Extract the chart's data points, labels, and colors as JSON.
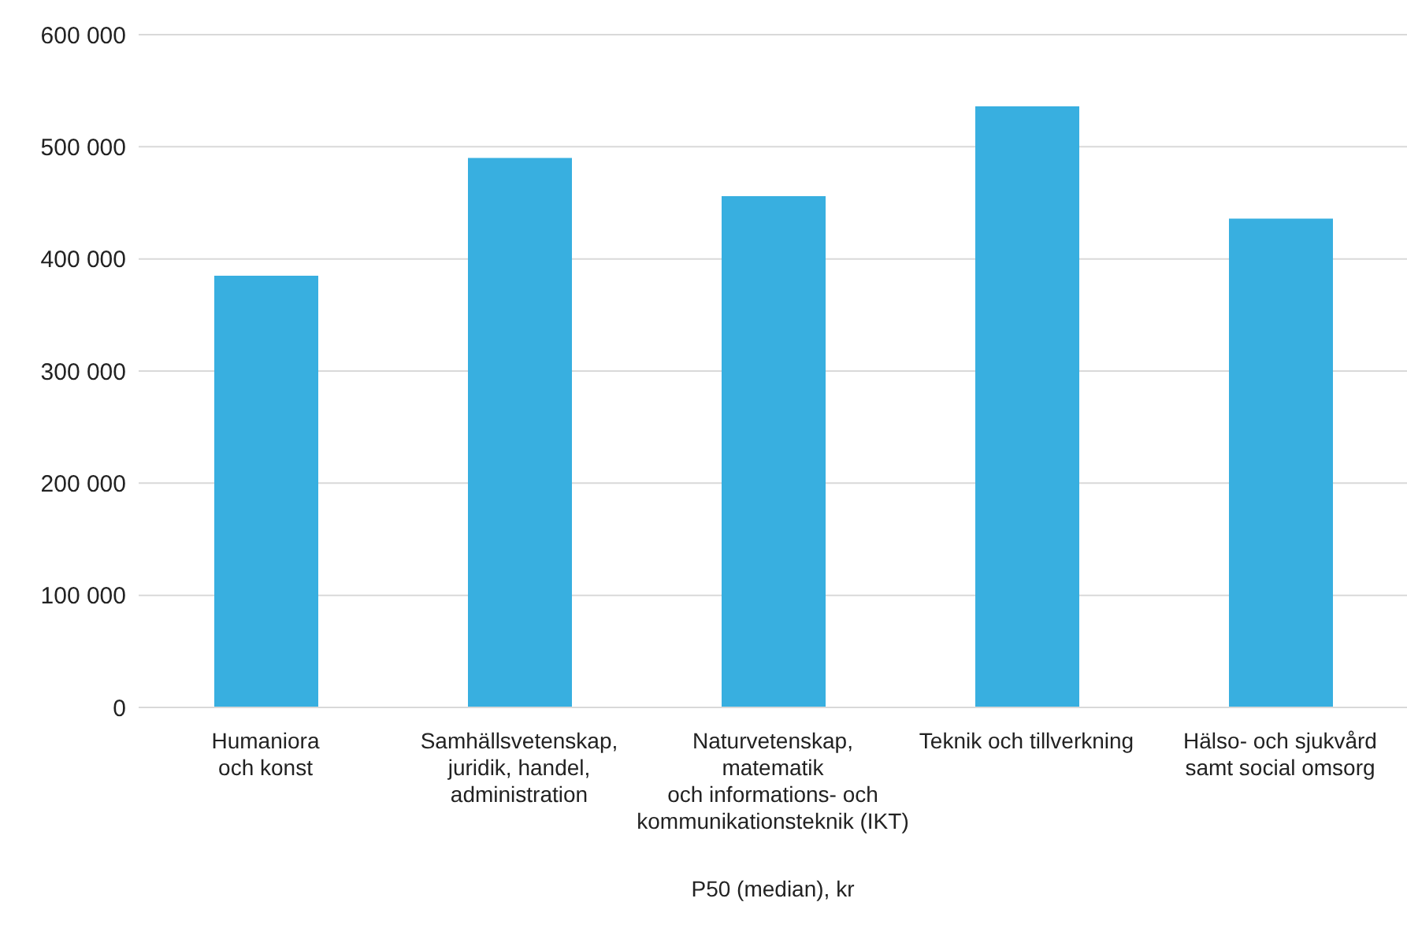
{
  "chart_data": {
    "type": "bar",
    "xlabel": "P50 (median), kr",
    "categories": [
      "Humaniora\noch konst",
      "Samhällsvetenskap,\njuridik, handel,\nadministration",
      "Naturvetenskap,\nmatematik\noch informations- och\nkommunikationsteknik (IKT)",
      "Teknik och tillverkning",
      "Hälso- och sjukvård\nsamt social omsorg"
    ],
    "values": [
      385000,
      490000,
      456000,
      536000,
      436000
    ],
    "color": "#38afe0",
    "ylim": [
      0,
      600000
    ],
    "yticks": [
      {
        "value": 0,
        "label": "0"
      },
      {
        "value": 100000,
        "label": "100 000"
      },
      {
        "value": 200000,
        "label": "200 000"
      },
      {
        "value": 300000,
        "label": "300 000"
      },
      {
        "value": 400000,
        "label": "400 000"
      },
      {
        "value": 500000,
        "label": "500 000"
      },
      {
        "value": 600000,
        "label": "600 000"
      }
    ],
    "grid": "y"
  }
}
